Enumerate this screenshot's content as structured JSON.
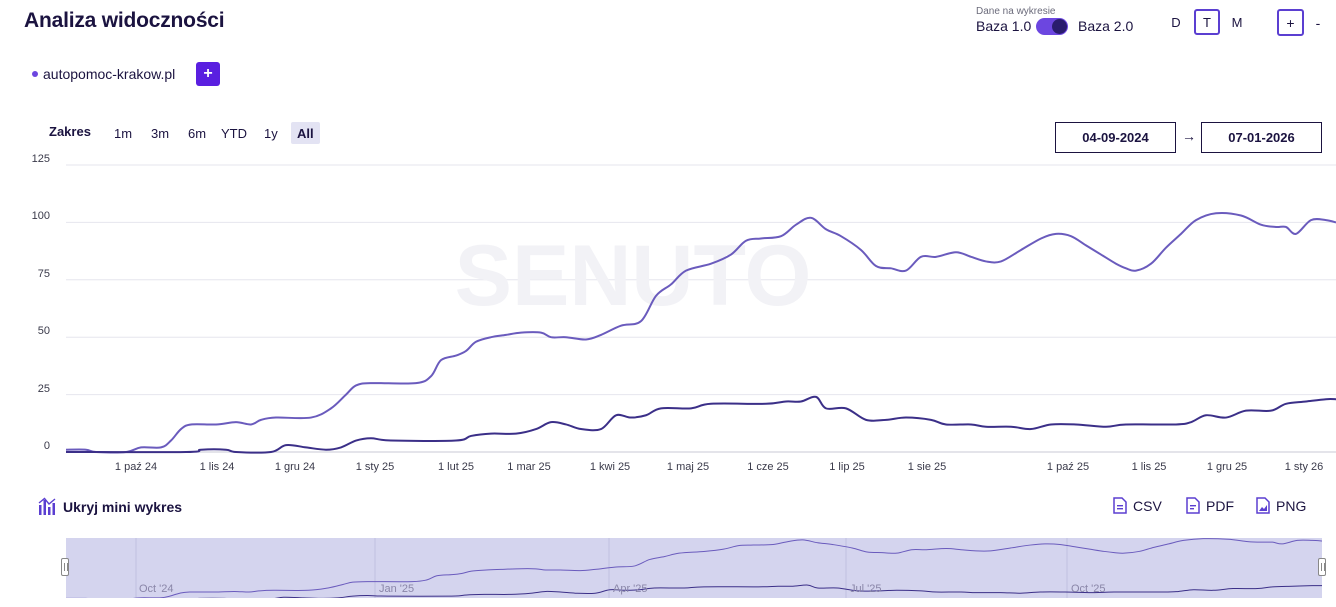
{
  "header": {
    "title": "Analiza widoczności",
    "data_label": "Dane na wykresie",
    "baza1": "Baza 1.0",
    "baza2": "Baza 2.0",
    "granularity": [
      "D",
      "T",
      "M"
    ],
    "granularity_active": "T",
    "zoom_in": "+",
    "zoom_out": "-"
  },
  "domain": {
    "name": "autopomoc-krakow.pl",
    "add_label": "+"
  },
  "range": {
    "label": "Zakres",
    "options": [
      "1m",
      "3m",
      "6m",
      "YTD",
      "1y",
      "All"
    ],
    "active": "All",
    "date_from": "04-09-2024",
    "date_to": "07-01-2026",
    "arrow": "→"
  },
  "chart_data": {
    "type": "line",
    "ylim": [
      0,
      125
    ],
    "yticks": [
      "125",
      "100",
      "75",
      "50",
      "25",
      "0"
    ],
    "xticks": [
      "1 paź 24",
      "1 lis 24",
      "1 gru 24",
      "1 sty 25",
      "1 lut 25",
      "1 mar 25",
      "1 kwi 25",
      "1 maj 25",
      "1 cze 25",
      "1 lip 25",
      "1 sie 25",
      "1 paź 25",
      "1 lis 25",
      "1 gru 25",
      "1 sty 26"
    ],
    "series": [
      {
        "color": "#6a5bbd",
        "points": [
          [
            0,
            1
          ],
          [
            20,
            1
          ],
          [
            30,
            0
          ],
          [
            60,
            0
          ],
          [
            75,
            2
          ],
          [
            95,
            2
          ],
          [
            105,
            5
          ],
          [
            115,
            10
          ],
          [
            125,
            12
          ],
          [
            150,
            12
          ],
          [
            170,
            13
          ],
          [
            185,
            12
          ],
          [
            195,
            14
          ],
          [
            210,
            15
          ],
          [
            245,
            15
          ],
          [
            265,
            19
          ],
          [
            280,
            25
          ],
          [
            290,
            29
          ],
          [
            305,
            30
          ],
          [
            350,
            30
          ],
          [
            365,
            33
          ],
          [
            375,
            40
          ],
          [
            390,
            42
          ],
          [
            400,
            44
          ],
          [
            410,
            48
          ],
          [
            425,
            50
          ],
          [
            440,
            51
          ],
          [
            455,
            52
          ],
          [
            475,
            52
          ],
          [
            485,
            50
          ],
          [
            500,
            50
          ],
          [
            520,
            49
          ],
          [
            535,
            51
          ],
          [
            555,
            55
          ],
          [
            575,
            57
          ],
          [
            590,
            68
          ],
          [
            605,
            73
          ],
          [
            620,
            79
          ],
          [
            645,
            82
          ],
          [
            665,
            86
          ],
          [
            680,
            92
          ],
          [
            695,
            93
          ],
          [
            715,
            94
          ],
          [
            730,
            99
          ],
          [
            745,
            102
          ],
          [
            760,
            97
          ],
          [
            775,
            94
          ],
          [
            795,
            88
          ],
          [
            810,
            81
          ],
          [
            825,
            80
          ],
          [
            840,
            79
          ],
          [
            855,
            85
          ],
          [
            870,
            85
          ],
          [
            890,
            87
          ],
          [
            905,
            85
          ],
          [
            920,
            83
          ],
          [
            935,
            83
          ],
          [
            955,
            88
          ],
          [
            975,
            93
          ],
          [
            990,
            95
          ],
          [
            1005,
            94
          ],
          [
            1020,
            90
          ],
          [
            1035,
            86
          ],
          [
            1050,
            82
          ],
          [
            1060,
            80
          ],
          [
            1070,
            79
          ],
          [
            1085,
            82
          ],
          [
            1100,
            89
          ],
          [
            1115,
            95
          ],
          [
            1130,
            101
          ],
          [
            1150,
            104
          ],
          [
            1175,
            103
          ],
          [
            1195,
            99
          ],
          [
            1210,
            98
          ],
          [
            1220,
            98
          ],
          [
            1230,
            95
          ],
          [
            1245,
            101
          ],
          [
            1260,
            101
          ],
          [
            1270,
            100
          ]
        ]
      },
      {
        "color": "#3b2f88",
        "points": [
          [
            0,
            0
          ],
          [
            120,
            0
          ],
          [
            135,
            1
          ],
          [
            160,
            1
          ],
          [
            170,
            0
          ],
          [
            205,
            0
          ],
          [
            220,
            3
          ],
          [
            240,
            2
          ],
          [
            260,
            1
          ],
          [
            275,
            2
          ],
          [
            290,
            5
          ],
          [
            305,
            6
          ],
          [
            325,
            5
          ],
          [
            390,
            5
          ],
          [
            405,
            7
          ],
          [
            425,
            8
          ],
          [
            450,
            8
          ],
          [
            470,
            10
          ],
          [
            485,
            13
          ],
          [
            500,
            12
          ],
          [
            515,
            10
          ],
          [
            535,
            10
          ],
          [
            550,
            16
          ],
          [
            565,
            15
          ],
          [
            580,
            16
          ],
          [
            595,
            19
          ],
          [
            625,
            19
          ],
          [
            645,
            21
          ],
          [
            700,
            21
          ],
          [
            720,
            22
          ],
          [
            735,
            22
          ],
          [
            750,
            24
          ],
          [
            760,
            19
          ],
          [
            780,
            19
          ],
          [
            800,
            14
          ],
          [
            820,
            14
          ],
          [
            840,
            15
          ],
          [
            865,
            14
          ],
          [
            880,
            12
          ],
          [
            905,
            12
          ],
          [
            920,
            11
          ],
          [
            945,
            11
          ],
          [
            965,
            10
          ],
          [
            985,
            12
          ],
          [
            1010,
            12
          ],
          [
            1040,
            11
          ],
          [
            1060,
            12
          ],
          [
            1110,
            12
          ],
          [
            1125,
            13
          ],
          [
            1140,
            16
          ],
          [
            1160,
            15
          ],
          [
            1180,
            18
          ],
          [
            1205,
            18
          ],
          [
            1220,
            21
          ],
          [
            1240,
            22
          ],
          [
            1260,
            23
          ],
          [
            1270,
            23
          ]
        ]
      }
    ]
  },
  "mini_chart": {
    "toggle_label": "Ukryj mini wykres",
    "labels": [
      "Oct '24",
      "Jan '25",
      "Apr '25",
      "Jul '25",
      "Oct '25"
    ]
  },
  "export": {
    "csv": "CSV",
    "pdf": "PDF",
    "png": "PNG"
  },
  "colors": {
    "accent": "#5a1fe0",
    "line_main": "#6a5bbd",
    "line_secondary": "#3b2f88",
    "mini_bg": "#d4d4ee"
  }
}
